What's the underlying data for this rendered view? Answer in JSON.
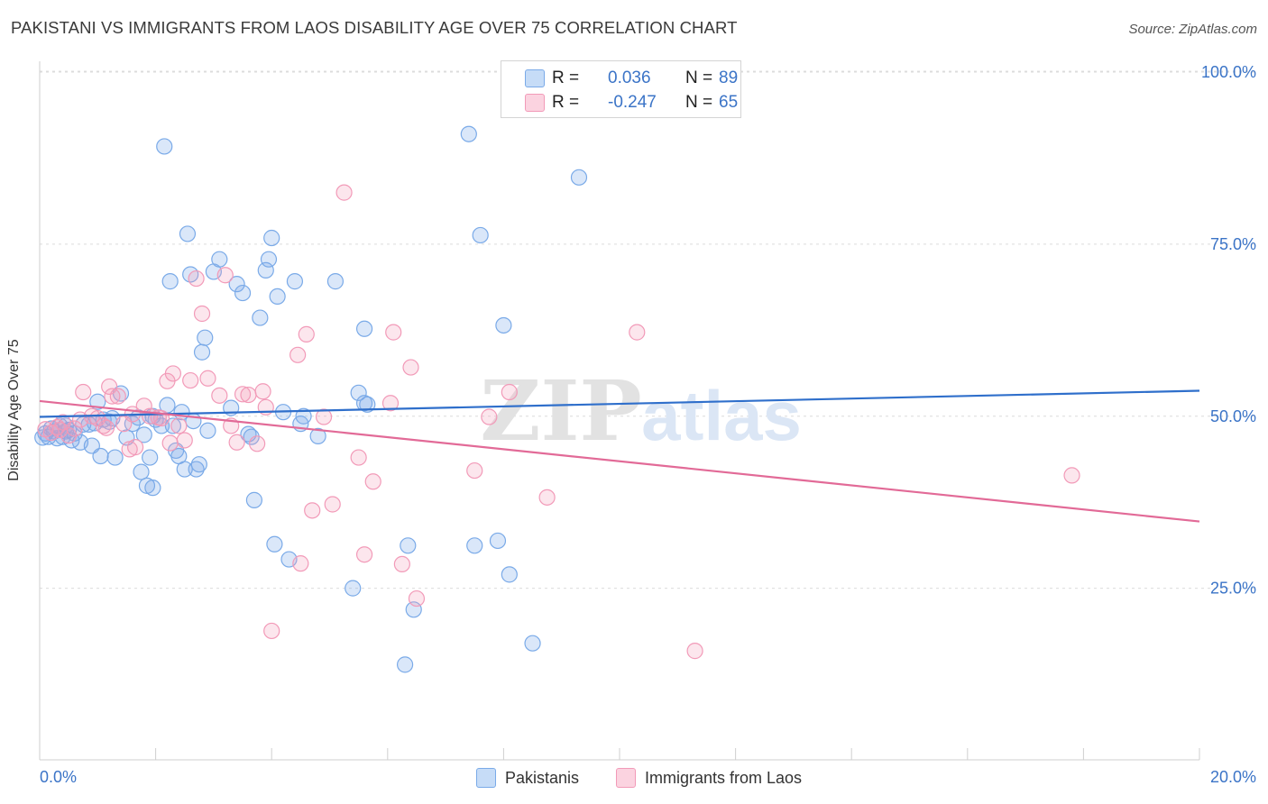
{
  "header": {
    "title": "PAKISTANI VS IMMIGRANTS FROM LAOS DISABILITY AGE OVER 75 CORRELATION CHART",
    "source": "Source: ZipAtlas.com"
  },
  "legend": {
    "rows": [
      {
        "r_label": "R =",
        "r_value": "0.036",
        "n_label": "N =",
        "n_value": "89"
      },
      {
        "r_label": "R =",
        "r_value": "-0.247",
        "n_label": "N =",
        "n_value": "65"
      }
    ]
  },
  "watermark": {
    "zip": "ZIP",
    "atlas": "atlas"
  },
  "chart_data": {
    "type": "scatter",
    "title": "PAKISTANI VS IMMIGRANTS FROM LAOS DISABILITY AGE OVER 75 CORRELATION CHART",
    "xlabel": "",
    "ylabel": "Disability Age Over 75",
    "xlim": [
      0,
      20
    ],
    "ylim": [
      0,
      105
    ],
    "x_ticks": [
      "0.0%",
      "20.0%"
    ],
    "y_ticks": [
      {
        "value": 25,
        "label": "25.0%"
      },
      {
        "value": 50,
        "label": "50.0%"
      },
      {
        "value": 75,
        "label": "75.0%"
      },
      {
        "value": 100,
        "label": "100.0%"
      }
    ],
    "grid": true,
    "legend_position": "top-center",
    "colors": {
      "pakistanis": "#7aaae8",
      "laos": "#f29ab8",
      "blue_line": "#2f6fcb",
      "pink_line": "#e26a97"
    },
    "series": [
      {
        "name": "Pakistanis",
        "trend": {
          "x": [
            0,
            20
          ],
          "y": [
            49.9,
            53.7
          ]
        },
        "points": [
          [
            0.1,
            47.5
          ],
          [
            0.15,
            47.0
          ],
          [
            0.2,
            48.2
          ],
          [
            0.25,
            47.8
          ],
          [
            0.3,
            46.8
          ],
          [
            0.35,
            48.6
          ],
          [
            0.4,
            47.0
          ],
          [
            0.45,
            47.8
          ],
          [
            0.5,
            48.0
          ],
          [
            0.55,
            46.5
          ],
          [
            0.6,
            47.5
          ],
          [
            0.7,
            46.2
          ],
          [
            0.75,
            48.8
          ],
          [
            0.85,
            48.8
          ],
          [
            0.9,
            45.7
          ],
          [
            1.0,
            52.1
          ],
          [
            1.05,
            44.2
          ],
          [
            1.1,
            49.5
          ],
          [
            1.2,
            49.2
          ],
          [
            1.3,
            44.0
          ],
          [
            1.4,
            53.3
          ],
          [
            1.5,
            46.9
          ],
          [
            1.6,
            48.9
          ],
          [
            1.7,
            49.8
          ],
          [
            1.75,
            41.9
          ],
          [
            1.8,
            47.3
          ],
          [
            1.85,
            39.9
          ],
          [
            1.9,
            44.0
          ],
          [
            1.95,
            39.6
          ],
          [
            2.0,
            49.5
          ],
          [
            2.1,
            48.6
          ],
          [
            2.15,
            89.2
          ],
          [
            2.2,
            51.6
          ],
          [
            2.25,
            69.6
          ],
          [
            2.3,
            48.6
          ],
          [
            2.35,
            45.0
          ],
          [
            2.4,
            44.2
          ],
          [
            2.5,
            42.3
          ],
          [
            2.55,
            76.5
          ],
          [
            2.6,
            70.6
          ],
          [
            2.65,
            49.3
          ],
          [
            2.7,
            42.3
          ],
          [
            2.75,
            43.0
          ],
          [
            2.8,
            59.3
          ],
          [
            2.85,
            61.4
          ],
          [
            2.9,
            47.9
          ],
          [
            3.0,
            71.0
          ],
          [
            3.1,
            72.8
          ],
          [
            3.3,
            51.2
          ],
          [
            3.4,
            69.2
          ],
          [
            3.5,
            67.9
          ],
          [
            3.6,
            47.4
          ],
          [
            3.7,
            37.8
          ],
          [
            3.8,
            64.3
          ],
          [
            3.9,
            71.2
          ],
          [
            3.95,
            72.8
          ],
          [
            4.0,
            75.9
          ],
          [
            4.05,
            31.4
          ],
          [
            4.1,
            67.4
          ],
          [
            4.2,
            50.6
          ],
          [
            4.3,
            29.2
          ],
          [
            4.4,
            69.6
          ],
          [
            4.55,
            50.0
          ],
          [
            4.8,
            47.1
          ],
          [
            5.1,
            69.6
          ],
          [
            5.4,
            25.0
          ],
          [
            5.5,
            53.4
          ],
          [
            5.6,
            62.7
          ],
          [
            5.65,
            51.7
          ],
          [
            6.3,
            13.9
          ],
          [
            6.35,
            31.2
          ],
          [
            6.45,
            21.9
          ],
          [
            7.4,
            91.0
          ],
          [
            7.5,
            31.2
          ],
          [
            7.6,
            76.3
          ],
          [
            7.9,
            31.9
          ],
          [
            8.0,
            63.2
          ],
          [
            8.1,
            27.0
          ],
          [
            8.5,
            17.0
          ],
          [
            9.3,
            84.7
          ],
          [
            0.05,
            46.9
          ],
          [
            0.45,
            48.6
          ],
          [
            0.95,
            49.0
          ],
          [
            1.25,
            49.7
          ],
          [
            1.95,
            50.0
          ],
          [
            2.45,
            50.6
          ],
          [
            3.65,
            47.0
          ],
          [
            4.5,
            48.9
          ],
          [
            5.6,
            51.9
          ]
        ]
      },
      {
        "name": "Immigrants from Laos",
        "trend": {
          "x": [
            0,
            20
          ],
          "y": [
            52.2,
            34.7
          ]
        },
        "points": [
          [
            0.1,
            48.1
          ],
          [
            0.2,
            47.6
          ],
          [
            0.3,
            48.4
          ],
          [
            0.4,
            49.1
          ],
          [
            0.5,
            47.2
          ],
          [
            0.6,
            48.2
          ],
          [
            0.7,
            49.5
          ],
          [
            0.75,
            53.5
          ],
          [
            0.9,
            50.0
          ],
          [
            1.0,
            49.7
          ],
          [
            1.1,
            48.6
          ],
          [
            1.2,
            54.3
          ],
          [
            1.25,
            52.9
          ],
          [
            1.35,
            52.9
          ],
          [
            1.45,
            48.9
          ],
          [
            1.55,
            45.2
          ],
          [
            1.6,
            50.3
          ],
          [
            1.65,
            45.5
          ],
          [
            1.8,
            51.5
          ],
          [
            1.9,
            50.0
          ],
          [
            2.05,
            49.8
          ],
          [
            2.1,
            49.7
          ],
          [
            2.2,
            55.1
          ],
          [
            2.25,
            46.1
          ],
          [
            2.3,
            56.2
          ],
          [
            2.4,
            48.6
          ],
          [
            2.5,
            46.5
          ],
          [
            2.6,
            55.2
          ],
          [
            2.7,
            70.0
          ],
          [
            2.8,
            64.9
          ],
          [
            2.9,
            55.5
          ],
          [
            3.1,
            53.0
          ],
          [
            3.2,
            70.5
          ],
          [
            3.3,
            48.6
          ],
          [
            3.4,
            46.2
          ],
          [
            3.5,
            53.2
          ],
          [
            3.6,
            53.1
          ],
          [
            3.75,
            46.0
          ],
          [
            3.85,
            53.6
          ],
          [
            3.9,
            51.3
          ],
          [
            4.0,
            18.8
          ],
          [
            4.45,
            58.9
          ],
          [
            4.5,
            28.6
          ],
          [
            4.6,
            61.9
          ],
          [
            4.7,
            36.3
          ],
          [
            4.9,
            49.9
          ],
          [
            5.05,
            37.2
          ],
          [
            5.25,
            82.5
          ],
          [
            5.5,
            44.0
          ],
          [
            5.6,
            29.9
          ],
          [
            5.75,
            40.5
          ],
          [
            6.05,
            51.9
          ],
          [
            6.1,
            62.2
          ],
          [
            6.25,
            28.5
          ],
          [
            6.4,
            57.1
          ],
          [
            6.5,
            23.5
          ],
          [
            7.5,
            42.1
          ],
          [
            7.75,
            49.9
          ],
          [
            8.1,
            53.5
          ],
          [
            8.75,
            38.2
          ],
          [
            10.3,
            62.2
          ],
          [
            11.3,
            15.9
          ],
          [
            17.8,
            41.4
          ],
          [
            0.35,
            48.0
          ],
          [
            1.15,
            48.3
          ]
        ]
      }
    ]
  },
  "bottom_legend": {
    "items": [
      "Pakistanis",
      "Immigrants from Laos"
    ]
  }
}
